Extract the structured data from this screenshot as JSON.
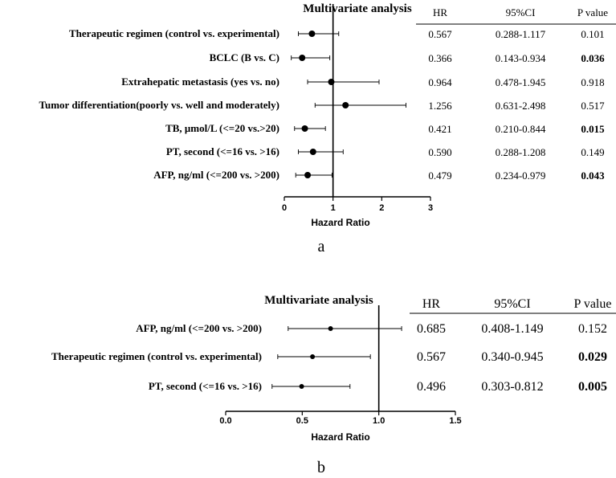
{
  "chart_data": [
    {
      "type": "forest",
      "panel_label": "a",
      "title": "Multivariate analysis",
      "xlabel": "Hazard Ratio",
      "xlim": [
        0,
        3
      ],
      "xticks": [
        "0",
        "1",
        "2",
        "3"
      ],
      "reference_line": 1,
      "columns": [
        "HR",
        "95%CI",
        "P value"
      ],
      "rows": [
        {
          "label": "Therapeutic regimen (control vs. experimental)",
          "hr": 0.567,
          "lo": 0.288,
          "hi": 1.117,
          "hr_text": "0.567",
          "ci_text": "0.288-1.117",
          "p_text": "0.101",
          "significant": false
        },
        {
          "label": "BCLC (B vs. C)",
          "hr": 0.366,
          "lo": 0.143,
          "hi": 0.934,
          "hr_text": "0.366",
          "ci_text": "0.143-0.934",
          "p_text": "0.036",
          "significant": true
        },
        {
          "label": "Extrahepatic metastasis (yes vs. no)",
          "hr": 0.964,
          "lo": 0.478,
          "hi": 1.945,
          "hr_text": "0.964",
          "ci_text": "0.478-1.945",
          "p_text": "0.918",
          "significant": false
        },
        {
          "label": "Tumor differentiation(poorly vs. well and moderately)",
          "hr": 1.256,
          "lo": 0.631,
          "hi": 2.498,
          "hr_text": "1.256",
          "ci_text": "0.631-2.498",
          "p_text": "0.517",
          "significant": false
        },
        {
          "label": "TB, μmol/L (<=20 vs.>20)",
          "hr": 0.421,
          "lo": 0.21,
          "hi": 0.844,
          "hr_text": "0.421",
          "ci_text": "0.210-0.844",
          "p_text": "0.015",
          "significant": true
        },
        {
          "label": "PT, second (<=16 vs. >16)",
          "hr": 0.59,
          "lo": 0.288,
          "hi": 1.208,
          "hr_text": "0.590",
          "ci_text": "0.288-1.208",
          "p_text": "0.149",
          "significant": false
        },
        {
          "label": "AFP, ng/ml (<=200 vs. >200)",
          "hr": 0.479,
          "lo": 0.234,
          "hi": 0.979,
          "hr_text": "0.479",
          "ci_text": "0.234-0.979",
          "p_text": "0.043",
          "significant": true
        }
      ]
    },
    {
      "type": "forest",
      "panel_label": "b",
      "title": "Multivariate analysis",
      "xlabel": "Hazard Ratio",
      "xlim": [
        0,
        1.5
      ],
      "xticks": [
        "0.0",
        "0.5",
        "1.0",
        "1.5"
      ],
      "reference_line": 1,
      "columns": [
        "HR",
        "95%CI",
        "P value"
      ],
      "rows": [
        {
          "label": "AFP, ng/ml (<=200 vs. >200)",
          "hr": 0.685,
          "lo": 0.408,
          "hi": 1.149,
          "hr_text": "0.685",
          "ci_text": "0.408-1.149",
          "p_text": "0.152",
          "significant": false
        },
        {
          "label": "Therapeutic regimen (control vs. experimental)",
          "hr": 0.567,
          "lo": 0.34,
          "hi": 0.945,
          "hr_text": "0.567",
          "ci_text": "0.340-0.945",
          "p_text": "0.029",
          "significant": true
        },
        {
          "label": "PT, second (<=16 vs. >16)",
          "hr": 0.496,
          "lo": 0.303,
          "hi": 0.812,
          "hr_text": "0.496",
          "ci_text": "0.303-0.812",
          "p_text": "0.005",
          "significant": true
        }
      ]
    }
  ]
}
